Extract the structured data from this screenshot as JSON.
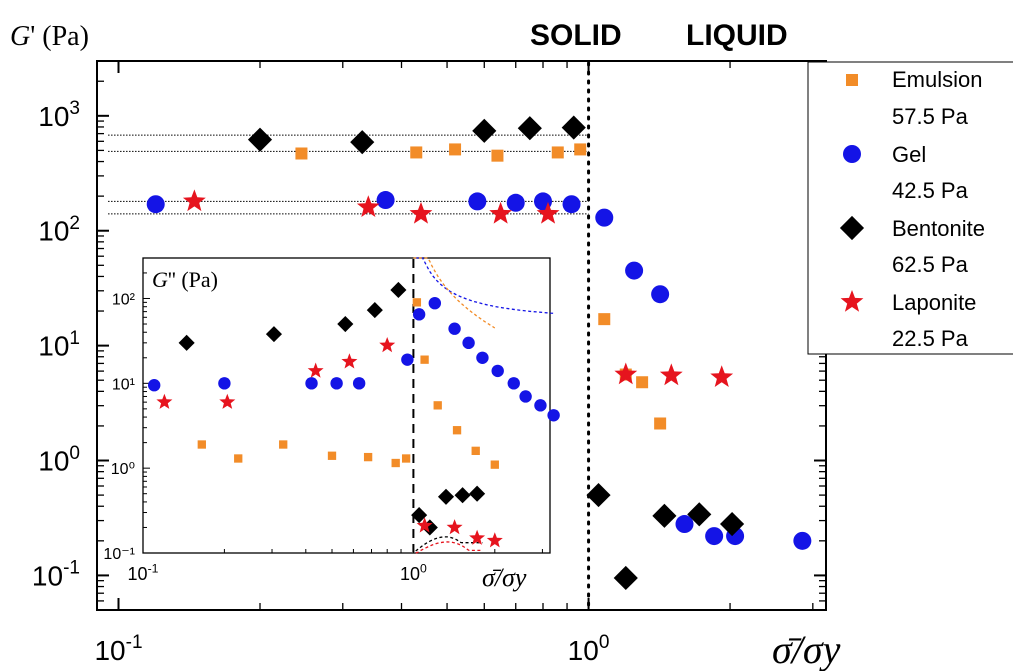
{
  "chart_data": {
    "type": "scatter",
    "main": {
      "ylabel_var": "G",
      "ylabel_rest": "' (Pa)",
      "xlabel": "σ̄/σy",
      "xscale": "log",
      "yscale": "log",
      "xlim": [
        0.09,
        3.2
      ],
      "ylim": [
        0.05,
        3000
      ],
      "x_ticks": [
        {
          "value": 0.1,
          "label_base": "10",
          "label_exp": "-1"
        },
        {
          "value": 1,
          "label_base": "10",
          "label_exp": "0"
        }
      ],
      "y_ticks": [
        {
          "value": 0.1,
          "label_base": "10",
          "label_exp": "-1"
        },
        {
          "value": 1,
          "label_base": "10",
          "label_exp": "0"
        },
        {
          "value": 10,
          "label_base": "10",
          "label_exp": "1"
        },
        {
          "value": 100,
          "label_base": "10",
          "label_exp": "2"
        },
        {
          "value": 1000,
          "label_base": "10",
          "label_exp": "3"
        }
      ],
      "region_labels": [
        "SOLID",
        "LIQUID"
      ],
      "yield_line_x": 1.0,
      "reference_lines": [
        {
          "y": 680,
          "x_range": [
            0.095,
            1.0
          ]
        },
        {
          "y": 490,
          "x_range": [
            0.095,
            1.0
          ]
        },
        {
          "y": 180,
          "x_range": [
            0.095,
            1.0
          ]
        },
        {
          "y": 140,
          "x_range": [
            0.095,
            1.0
          ]
        }
      ],
      "series": [
        {
          "name": "Emulsion",
          "sub": "57.5 Pa",
          "marker": "square",
          "color": "#F28C28",
          "points": [
            [
              0.245,
              470
            ],
            [
              0.43,
              480
            ],
            [
              0.52,
              510
            ],
            [
              0.64,
              450
            ],
            [
              0.86,
              480
            ],
            [
              0.96,
              510
            ],
            [
              1.08,
              17
            ],
            [
              1.2,
              5.6
            ],
            [
              1.3,
              4.8
            ],
            [
              1.42,
              2.1
            ]
          ]
        },
        {
          "name": "Gel",
          "sub": "42.5 Pa",
          "marker": "circle",
          "color": "#1414E6",
          "points": [
            [
              0.12,
              170
            ],
            [
              0.37,
              185
            ],
            [
              0.58,
              180
            ],
            [
              0.7,
              175
            ],
            [
              0.8,
              180
            ],
            [
              0.92,
              170
            ],
            [
              1.08,
              130
            ],
            [
              1.25,
              45
            ],
            [
              1.42,
              28
            ],
            [
              1.6,
              0.28
            ],
            [
              1.85,
              0.22
            ],
            [
              2.05,
              0.22
            ],
            [
              2.85,
              0.2
            ]
          ]
        },
        {
          "name": "Bentonite",
          "sub": "62.5 Pa",
          "marker": "diamond",
          "color": "#000000",
          "points": [
            [
              0.2,
              620
            ],
            [
              0.33,
              590
            ],
            [
              0.6,
              740
            ],
            [
              0.75,
              780
            ],
            [
              0.93,
              790
            ],
            [
              1.05,
              0.5
            ],
            [
              1.2,
              0.095
            ],
            [
              1.45,
              0.33
            ],
            [
              1.72,
              0.34
            ],
            [
              2.02,
              0.28
            ]
          ]
        },
        {
          "name": "Laponite",
          "sub": "22.5 Pa",
          "marker": "star",
          "color": "#E6141E",
          "points": [
            [
              0.145,
              180
            ],
            [
              0.34,
              160
            ],
            [
              0.44,
              140
            ],
            [
              0.65,
              140
            ],
            [
              0.82,
              140
            ],
            [
              1.2,
              5.6
            ],
            [
              1.5,
              5.5
            ],
            [
              1.92,
              5.3
            ]
          ]
        }
      ]
    },
    "inset": {
      "ylabel_var": "G",
      "ylabel_rest": "'' (Pa)",
      "xlabel": "σ̄/σy",
      "xscale": "log",
      "yscale": "log",
      "xlim": [
        0.1,
        3.2
      ],
      "ylim": [
        0.1,
        300
      ],
      "x_ticks": [
        {
          "value": 0.1,
          "label_base": "10",
          "label_exp": "-1"
        },
        {
          "value": 1,
          "label_base": "10",
          "label_exp": "0"
        }
      ],
      "y_ticks": [
        {
          "value": 0.1,
          "label": "10⁻¹"
        },
        {
          "value": 1,
          "label": "10⁰"
        },
        {
          "value": 10,
          "label": "10¹"
        },
        {
          "value": 100,
          "label": "10²"
        }
      ],
      "yield_line_x": 1.0,
      "series": [
        {
          "name": "Emulsion",
          "marker": "square",
          "color": "#F28C28",
          "points": [
            [
              0.165,
              1.9
            ],
            [
              0.225,
              1.3
            ],
            [
              0.33,
              1.9
            ],
            [
              0.5,
              1.4
            ],
            [
              0.68,
              1.35
            ],
            [
              0.86,
              1.15
            ],
            [
              0.94,
              1.3
            ],
            [
              1.03,
              90
            ],
            [
              1.1,
              19
            ],
            [
              1.23,
              5.5
            ],
            [
              1.45,
              2.8
            ],
            [
              1.7,
              1.6
            ],
            [
              2.0,
              1.1
            ]
          ]
        },
        {
          "name": "Gel",
          "marker": "circle",
          "color": "#1414E6",
          "points": [
            [
              0.11,
              9.5
            ],
            [
              0.2,
              10
            ],
            [
              0.42,
              10
            ],
            [
              0.52,
              10
            ],
            [
              0.63,
              10
            ],
            [
              0.95,
              19
            ],
            [
              1.05,
              65
            ],
            [
              1.2,
              88
            ],
            [
              1.42,
              44
            ],
            [
              1.6,
              30
            ],
            [
              1.8,
              20
            ],
            [
              2.05,
              14
            ],
            [
              2.35,
              10
            ],
            [
              2.6,
              7
            ],
            [
              2.95,
              5.5
            ],
            [
              3.3,
              4.2
            ]
          ]
        },
        {
          "name": "Bentonite",
          "marker": "diamond",
          "color": "#000000",
          "points": [
            [
              0.145,
              30
            ],
            [
              0.305,
              38
            ],
            [
              0.56,
              50
            ],
            [
              0.72,
              73
            ],
            [
              0.88,
              126
            ],
            [
              1.05,
              0.28
            ],
            [
              1.15,
              0.2
            ],
            [
              1.32,
              0.46
            ],
            [
              1.52,
              0.48
            ],
            [
              1.72,
              0.5
            ]
          ]
        },
        {
          "name": "Laponite",
          "marker": "star",
          "color": "#E6141E",
          "points": [
            [
              0.12,
              6
            ],
            [
              0.205,
              6
            ],
            [
              0.435,
              14
            ],
            [
              0.58,
              18
            ],
            [
              0.8,
              28
            ],
            [
              1.1,
              0.21
            ],
            [
              1.42,
              0.2
            ],
            [
              1.72,
              0.15
            ],
            [
              2.0,
              0.14
            ]
          ]
        }
      ],
      "fits": [
        {
          "series": "Gel",
          "color": "#1414E6",
          "x_range": [
            1.02,
            3.3
          ],
          "a": 56,
          "b": 25
        },
        {
          "series": "Emulsion",
          "color": "#F28C28",
          "x_range": [
            1.0,
            2.0
          ],
          "a": 0.6,
          "b": 45
        },
        {
          "series": "Bentonite",
          "color": "#000000",
          "x_range": [
            1.02,
            1.8
          ],
          "type": "hump"
        },
        {
          "series": "Laponite",
          "color": "#E6141E",
          "x_range": [
            1.02,
            1.8
          ],
          "type": "hump2"
        }
      ]
    }
  }
}
